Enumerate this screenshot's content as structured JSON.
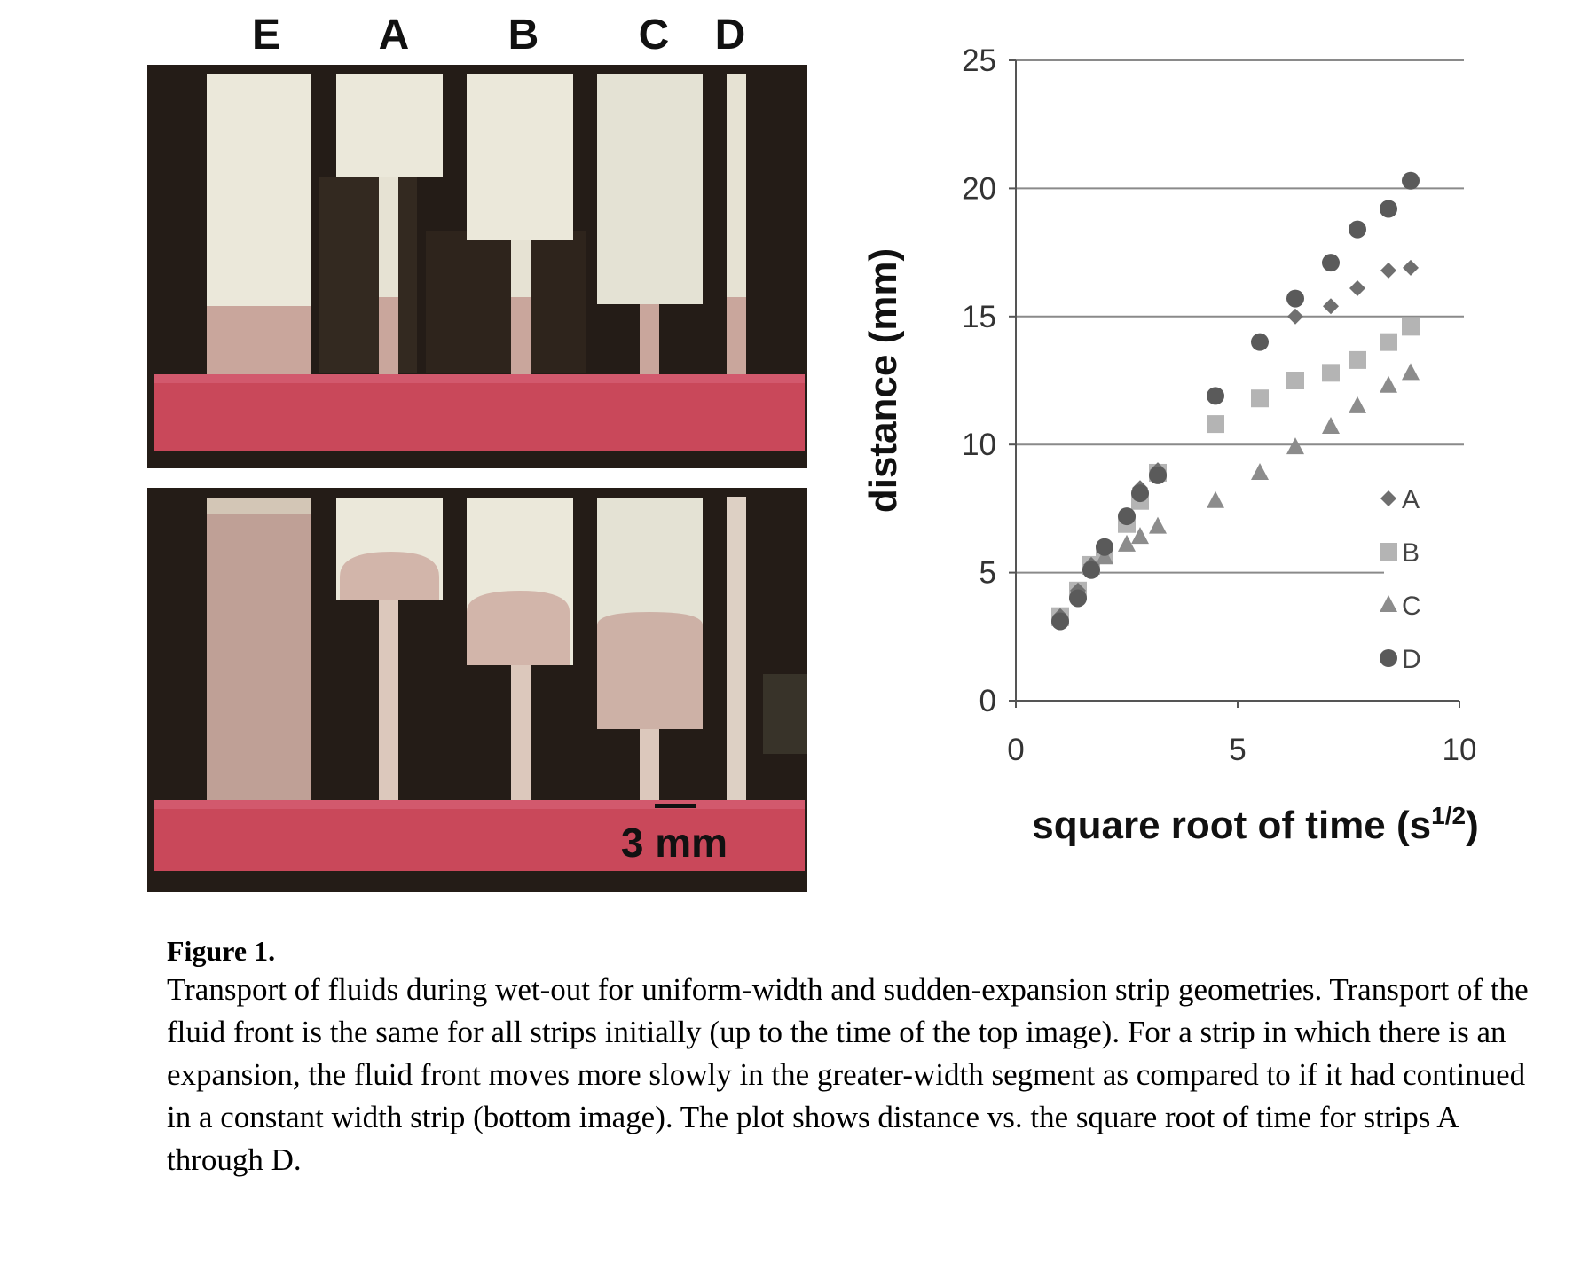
{
  "photo": {
    "strip_labels": [
      "E",
      "A",
      "B",
      "C",
      "D"
    ],
    "scale_bar_label": "3 mm",
    "colors": {
      "background": "#241c17",
      "strip": "#e9e6d9",
      "wetted": "#c39d94",
      "reservoir": "#c9485a"
    }
  },
  "chart_data": {
    "type": "scatter",
    "title": "",
    "xlabel": "square root of time (s",
    "xlabel_superscript": "1/2",
    "xlabel_suffix": ")",
    "ylabel": "distance (mm)",
    "xlim": [
      0,
      10
    ],
    "ylim": [
      0,
      25
    ],
    "xticks": [
      "0",
      "5",
      "10"
    ],
    "yticks": [
      "0",
      "5",
      "10",
      "15",
      "20",
      "25"
    ],
    "grid": "horizontal",
    "legend_position": "right",
    "series": [
      {
        "name": "A",
        "marker": "diamond",
        "color": "#6f6f6f",
        "x": [
          1.0,
          1.4,
          1.7,
          2.0,
          2.5,
          2.8,
          3.2,
          6.3,
          7.1,
          7.7,
          8.4,
          8.9
        ],
        "y": [
          3.3,
          4.3,
          5.3,
          6.0,
          7.2,
          8.3,
          9.0,
          15.0,
          15.4,
          16.1,
          16.8,
          16.9
        ]
      },
      {
        "name": "B",
        "marker": "square",
        "color": "#b4b4b4",
        "x": [
          1.0,
          1.4,
          1.7,
          2.0,
          2.5,
          2.8,
          3.2,
          4.5,
          5.5,
          6.3,
          7.1,
          7.7,
          8.4,
          8.9
        ],
        "y": [
          3.3,
          4.3,
          5.3,
          5.7,
          6.9,
          7.8,
          8.9,
          10.8,
          11.8,
          12.5,
          12.8,
          13.3,
          14.0,
          14.6
        ]
      },
      {
        "name": "C",
        "marker": "triangle",
        "color": "#8c8c8c",
        "x": [
          1.0,
          1.4,
          1.7,
          2.0,
          2.5,
          2.8,
          3.2,
          4.5,
          5.5,
          6.3,
          7.1,
          7.7,
          8.4,
          8.9
        ],
        "y": [
          3.2,
          4.2,
          5.2,
          5.6,
          6.1,
          6.4,
          6.8,
          7.8,
          8.9,
          9.9,
          10.7,
          11.5,
          12.3,
          12.8
        ]
      },
      {
        "name": "D",
        "marker": "circle",
        "color": "#5a5a5a",
        "x": [
          1.0,
          1.4,
          1.7,
          2.0,
          2.5,
          2.8,
          3.2,
          4.5,
          5.5,
          6.3,
          7.1,
          7.7,
          8.4,
          8.9
        ],
        "y": [
          3.1,
          4.0,
          5.1,
          6.0,
          7.2,
          8.1,
          8.8,
          11.9,
          14.0,
          15.7,
          17.1,
          18.4,
          19.2,
          20.3
        ]
      }
    ]
  },
  "caption": {
    "title": "Figure 1.",
    "body": "Transport of fluids during wet-out for uniform-width and sudden-expansion strip geometries. Transport of the fluid front is the same for all strips initially (up to the time of the top image). For a strip in which there is an expansion, the fluid front moves more slowly in the greater-width segment as compared to if it had continued in a constant width strip (bottom image). The plot shows distance vs. the square root of time for strips A through D."
  }
}
